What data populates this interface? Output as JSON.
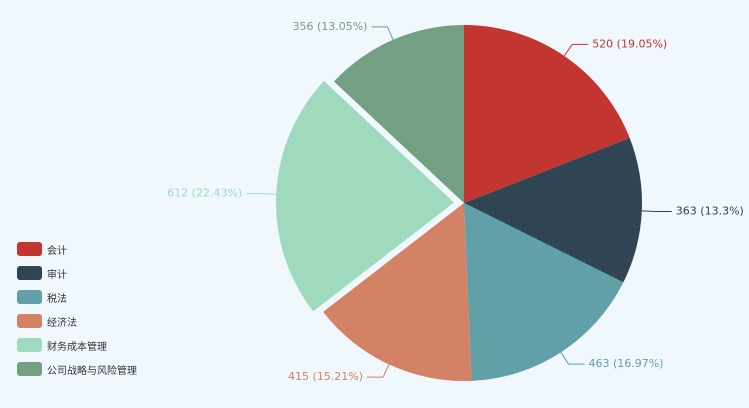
{
  "chart_data": {
    "type": "pie",
    "title": "",
    "categories": [
      "会计",
      "审计",
      "税法",
      "经济法",
      "财务成本管理",
      "公司战略与风险管理"
    ],
    "values": [
      520,
      363,
      463,
      415,
      612,
      356
    ],
    "percent_labels": [
      "520 (19.05%)",
      "363 (13.3%)",
      "463 (16.97%)",
      "415 (15.21%)",
      "612 (22.43%)",
      "356 (13.05%)"
    ],
    "colors": [
      "#c23531",
      "#2f4554",
      "#61a0a8",
      "#d48265",
      "#9fdabf",
      "#749f83"
    ],
    "highlighted_index": 4,
    "legend_position": "bottom-left",
    "start": "top, clockwise"
  }
}
